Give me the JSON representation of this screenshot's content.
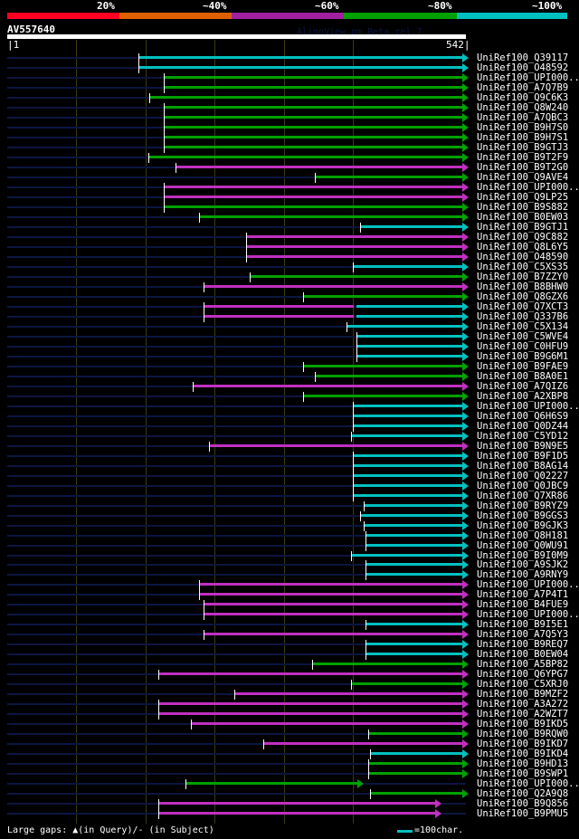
{
  "legend": {
    "labels": [
      "20%",
      "~40%",
      "~60%",
      "~80%",
      "~100%"
    ],
    "colors": [
      "#ff0022",
      "#e06000",
      "#a020a0",
      "#00a000",
      "#00c0c0"
    ]
  },
  "query": {
    "id": "AV557640",
    "length_start": "1",
    "length_end": "542",
    "version": "AlignView.pm Beta rel.7"
  },
  "colors": {
    "cyan": "#00c0c0",
    "green": "#00a000",
    "magenta": "#c030c0"
  },
  "rows": [
    {
      "label": "UniRef100_Q39117",
      "segs": [
        [
          156,
          542,
          "cyan"
        ]
      ]
    },
    {
      "label": "UniRef100_O48592",
      "segs": [
        [
          156,
          542,
          "cyan"
        ]
      ]
    },
    {
      "label": "UniRef100_UPI000..",
      "segs": [
        [
          186,
          542,
          "green"
        ]
      ]
    },
    {
      "label": "UniRef100_A7Q7B9",
      "segs": [
        [
          186,
          542,
          "green"
        ]
      ]
    },
    {
      "label": "UniRef100_Q9C6K3",
      "segs": [
        [
          169,
          542,
          "green"
        ]
      ]
    },
    {
      "label": "UniRef100_Q8W240",
      "segs": [
        [
          186,
          542,
          "green"
        ]
      ]
    },
    {
      "label": "UniRef100_A7QBC3",
      "segs": [
        [
          186,
          542,
          "green"
        ]
      ]
    },
    {
      "label": "UniRef100_B9H7S0",
      "segs": [
        [
          186,
          542,
          "green"
        ]
      ]
    },
    {
      "label": "UniRef100_B9H7S1",
      "segs": [
        [
          186,
          542,
          "green"
        ]
      ]
    },
    {
      "label": "UniRef100_B9GTJ3",
      "segs": [
        [
          186,
          542,
          "green"
        ]
      ]
    },
    {
      "label": "UniRef100_B9T2F9",
      "segs": [
        [
          167,
          542,
          "green"
        ]
      ]
    },
    {
      "label": "UniRef100_B9T2G0",
      "segs": [
        [
          200,
          542,
          "magenta"
        ]
      ]
    },
    {
      "label": "UniRef100_Q9AVE4",
      "segs": [
        [
          364,
          542,
          "green"
        ]
      ]
    },
    {
      "label": "UniRef100_UPI000..",
      "segs": [
        [
          186,
          542,
          "magenta"
        ]
      ]
    },
    {
      "label": "UniRef100_Q9LP25",
      "segs": [
        [
          186,
          542,
          "magenta"
        ]
      ]
    },
    {
      "label": "UniRef100_B9S882",
      "segs": [
        [
          186,
          542,
          "green"
        ]
      ]
    },
    {
      "label": "UniRef100_B0EW03",
      "segs": [
        [
          227,
          542,
          "green"
        ]
      ]
    },
    {
      "label": "UniRef100_B9GTJ1",
      "segs": [
        [
          417,
          542,
          "cyan"
        ]
      ]
    },
    {
      "label": "UniRef100_Q9C882",
      "segs": [
        [
          283,
          542,
          "magenta"
        ]
      ]
    },
    {
      "label": "UniRef100_Q8L6Y5",
      "segs": [
        [
          283,
          542,
          "magenta"
        ]
      ]
    },
    {
      "label": "UniRef100_O48590",
      "segs": [
        [
          283,
          542,
          "magenta"
        ]
      ]
    },
    {
      "label": "UniRef100_C5XS35",
      "segs": [
        [
          409,
          542,
          "cyan"
        ]
      ]
    },
    {
      "label": "UniRef100_B7ZZY0",
      "segs": [
        [
          287,
          542,
          "green"
        ]
      ]
    },
    {
      "label": "UniRef100_B8BHW0",
      "segs": [
        [
          233,
          542,
          "magenta"
        ]
      ]
    },
    {
      "label": "UniRef100_Q8GZX6",
      "segs": [
        [
          350,
          542,
          "green"
        ]
      ]
    },
    {
      "label": "UniRef100_Q7XCT3",
      "segs": [
        [
          233,
          413,
          "magenta"
        ],
        [
          413,
          542,
          "cyan"
        ]
      ]
    },
    {
      "label": "UniRef100_Q337B6",
      "segs": [
        [
          233,
          413,
          "magenta"
        ],
        [
          413,
          542,
          "cyan"
        ]
      ]
    },
    {
      "label": "UniRef100_C5X134",
      "segs": [
        [
          401,
          542,
          "cyan"
        ]
      ]
    },
    {
      "label": "UniRef100_C5WVE4",
      "segs": [
        [
          413,
          542,
          "cyan"
        ]
      ]
    },
    {
      "label": "UniRef100_C0HFU9",
      "segs": [
        [
          413,
          542,
          "cyan"
        ]
      ]
    },
    {
      "label": "UniRef100_B9G6M1",
      "segs": [
        [
          413,
          542,
          "cyan"
        ]
      ]
    },
    {
      "label": "UniRef100_B9FAE9",
      "segs": [
        [
          350,
          542,
          "green"
        ]
      ]
    },
    {
      "label": "UniRef100_B8A0E1",
      "segs": [
        [
          364,
          542,
          "green"
        ]
      ]
    },
    {
      "label": "UniRef100_A7QIZ6",
      "segs": [
        [
          220,
          542,
          "magenta"
        ]
      ]
    },
    {
      "label": "UniRef100_A2XBP8",
      "segs": [
        [
          350,
          542,
          "green"
        ]
      ]
    },
    {
      "label": "UniRef100_UPI000..",
      "segs": [
        [
          409,
          542,
          "cyan"
        ]
      ]
    },
    {
      "label": "UniRef100_Q6H6S9",
      "segs": [
        [
          409,
          542,
          "cyan"
        ]
      ]
    },
    {
      "label": "UniRef100_Q0DZ44",
      "segs": [
        [
          409,
          542,
          "cyan"
        ]
      ]
    },
    {
      "label": "UniRef100_C5YD12",
      "segs": [
        [
          406,
          542,
          "cyan"
        ]
      ]
    },
    {
      "label": "UniRef100_B9N9E5",
      "segs": [
        [
          239,
          542,
          "magenta"
        ]
      ]
    },
    {
      "label": "UniRef100_B9F1D5",
      "segs": [
        [
          409,
          542,
          "cyan"
        ]
      ]
    },
    {
      "label": "UniRef100_B8AG14",
      "segs": [
        [
          409,
          542,
          "cyan"
        ]
      ]
    },
    {
      "label": "UniRef100_Q02227",
      "segs": [
        [
          409,
          542,
          "cyan"
        ]
      ]
    },
    {
      "label": "UniRef100_Q0JBC9",
      "segs": [
        [
          409,
          542,
          "cyan"
        ]
      ]
    },
    {
      "label": "UniRef100_Q7XR86",
      "segs": [
        [
          409,
          542,
          "cyan"
        ]
      ]
    },
    {
      "label": "UniRef100_B9RYZ9",
      "segs": [
        [
          421,
          542,
          "cyan"
        ]
      ]
    },
    {
      "label": "UniRef100_B9GGS3",
      "segs": [
        [
          417,
          542,
          "cyan"
        ]
      ]
    },
    {
      "label": "UniRef100_B9GJK3",
      "segs": [
        [
          421,
          542,
          "cyan"
        ]
      ]
    },
    {
      "label": "UniRef100_Q8H181",
      "segs": [
        [
          424,
          542,
          "cyan"
        ]
      ]
    },
    {
      "label": "UniRef100_Q0WU91",
      "segs": [
        [
          424,
          542,
          "cyan"
        ]
      ]
    },
    {
      "label": "UniRef100_B9I0M9",
      "segs": [
        [
          406,
          542,
          "cyan"
        ]
      ]
    },
    {
      "label": "UniRef100_A9SJK2",
      "segs": [
        [
          424,
          542,
          "cyan"
        ]
      ]
    },
    {
      "label": "UniRef100_A9RNY9",
      "segs": [
        [
          424,
          542,
          "cyan"
        ]
      ]
    },
    {
      "label": "UniRef100_UPI000..",
      "segs": [
        [
          227,
          542,
          "magenta"
        ]
      ]
    },
    {
      "label": "UniRef100_A7P4T1",
      "segs": [
        [
          227,
          542,
          "magenta"
        ]
      ]
    },
    {
      "label": "UniRef100_B4FUE9",
      "segs": [
        [
          233,
          542,
          "magenta"
        ]
      ]
    },
    {
      "label": "UniRef100_UPI000..",
      "segs": [
        [
          233,
          542,
          "magenta"
        ]
      ]
    },
    {
      "label": "UniRef100_B9I5E1",
      "segs": [
        [
          424,
          542,
          "cyan"
        ]
      ]
    },
    {
      "label": "UniRef100_A7Q5Y3",
      "segs": [
        [
          233,
          542,
          "magenta"
        ]
      ]
    },
    {
      "label": "UniRef100_B9REQ7",
      "segs": [
        [
          424,
          542,
          "cyan"
        ]
      ]
    },
    {
      "label": "UniRef100_B0EW04",
      "segs": [
        [
          424,
          542,
          "cyan"
        ]
      ]
    },
    {
      "label": "UniRef100_A5BP82",
      "segs": [
        [
          361,
          542,
          "green"
        ]
      ]
    },
    {
      "label": "UniRef100_Q6YPG7",
      "segs": [
        [
          179,
          542,
          "magenta"
        ]
      ]
    },
    {
      "label": "UniRef100_C5XRJ0",
      "segs": [
        [
          406,
          542,
          "green"
        ]
      ]
    },
    {
      "label": "UniRef100_B9MZF2",
      "segs": [
        [
          269,
          542,
          "magenta"
        ]
      ]
    },
    {
      "label": "UniRef100_A3A272",
      "segs": [
        [
          179,
          542,
          "magenta"
        ]
      ]
    },
    {
      "label": "UniRef100_A2WZT7",
      "segs": [
        [
          179,
          542,
          "magenta"
        ]
      ]
    },
    {
      "label": "UniRef100_B9IKD5",
      "segs": [
        [
          218,
          542,
          "magenta"
        ]
      ]
    },
    {
      "label": "UniRef100_B9RQW0",
      "segs": [
        [
          427,
          542,
          "green"
        ]
      ]
    },
    {
      "label": "UniRef100_B9IKD7",
      "segs": [
        [
          303,
          542,
          "magenta"
        ]
      ]
    },
    {
      "label": "UniRef100_B9IKD4",
      "segs": [
        [
          429,
          542,
          "cyan"
        ]
      ]
    },
    {
      "label": "UniRef100_B9HD13",
      "segs": [
        [
          427,
          542,
          "green"
        ]
      ]
    },
    {
      "label": "UniRef100_B9SWP1",
      "segs": [
        [
          427,
          542,
          "green"
        ]
      ]
    },
    {
      "label": "UniRef100_UPI000..",
      "segs": [
        [
          211,
          418,
          "green"
        ]
      ]
    },
    {
      "label": "UniRef100_Q2A9Q8",
      "segs": [
        [
          429,
          542,
          "green"
        ]
      ]
    },
    {
      "label": "UniRef100_B9Q856",
      "segs": [
        [
          179,
          510,
          "magenta"
        ]
      ]
    },
    {
      "label": "UniRef100_B9PMU5",
      "segs": [
        [
          179,
          510,
          "magenta"
        ]
      ]
    }
  ],
  "footer": {
    "gaps_text": "Large gaps: ▲(in Query)/- (in Subject)",
    "scale_text": "=100char."
  }
}
